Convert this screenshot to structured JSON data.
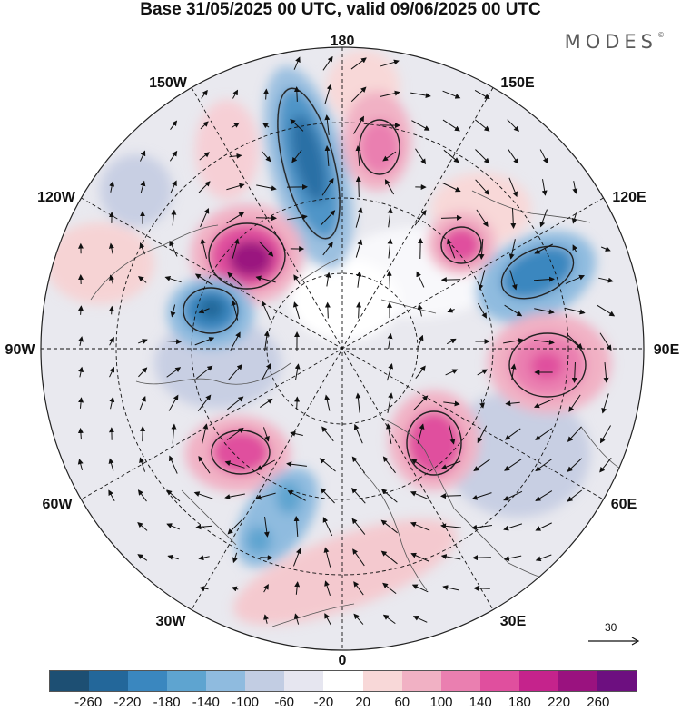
{
  "title": "Base 31/05/2025 00 UTC, valid 09/06/2025 00 UTC",
  "brand": "MODES",
  "brand_mark": "©",
  "longitude_labels": {
    "deg180": "180",
    "deg150e": "150E",
    "deg120e": "120E",
    "deg90e": "90E",
    "deg60e": "60E",
    "deg30e": "30E",
    "deg0": "0",
    "deg30w": "30W",
    "deg60w": "60W",
    "deg90w": "90W",
    "deg120w": "120W",
    "deg150w": "150W"
  },
  "vector_reference": "30",
  "colorbar": {
    "colors": [
      "#1d4f73",
      "#23679a",
      "#3a87bf",
      "#5ea4d0",
      "#8fbbdf",
      "#c2cde3",
      "#e6e6f0",
      "#ffffff",
      "#f8d8d8",
      "#f1b1c4",
      "#ea7fb0",
      "#e04f9e",
      "#c5238c",
      "#9a127f",
      "#6d0f80"
    ],
    "ticks": [
      "-260",
      "-220",
      "-180",
      "-140",
      "-100",
      "-60",
      "-20",
      "20",
      "60",
      "100",
      "140",
      "180",
      "220",
      "260"
    ]
  },
  "anomaly_centers": [
    {
      "sign": "negative",
      "value": -220,
      "sector": "170W-180"
    },
    {
      "sign": "positive",
      "value": 220,
      "sector": "130W-150W"
    },
    {
      "sign": "negative",
      "value": -180,
      "sector": "100W-110W"
    },
    {
      "sign": "positive",
      "value": 140,
      "sector": "160E-170E"
    },
    {
      "sign": "positive",
      "value": 140,
      "sector": "130E-140E"
    },
    {
      "sign": "negative",
      "value": -140,
      "sector": "100E-110E"
    },
    {
      "sign": "positive",
      "value": 180,
      "sector": "80E-90E"
    },
    {
      "sign": "positive",
      "value": 180,
      "sector": "30E-50E"
    },
    {
      "sign": "positive",
      "value": 140,
      "sector": "50W-60W"
    },
    {
      "sign": "negative",
      "value": -100,
      "sector": "30W-40W"
    }
  ]
}
